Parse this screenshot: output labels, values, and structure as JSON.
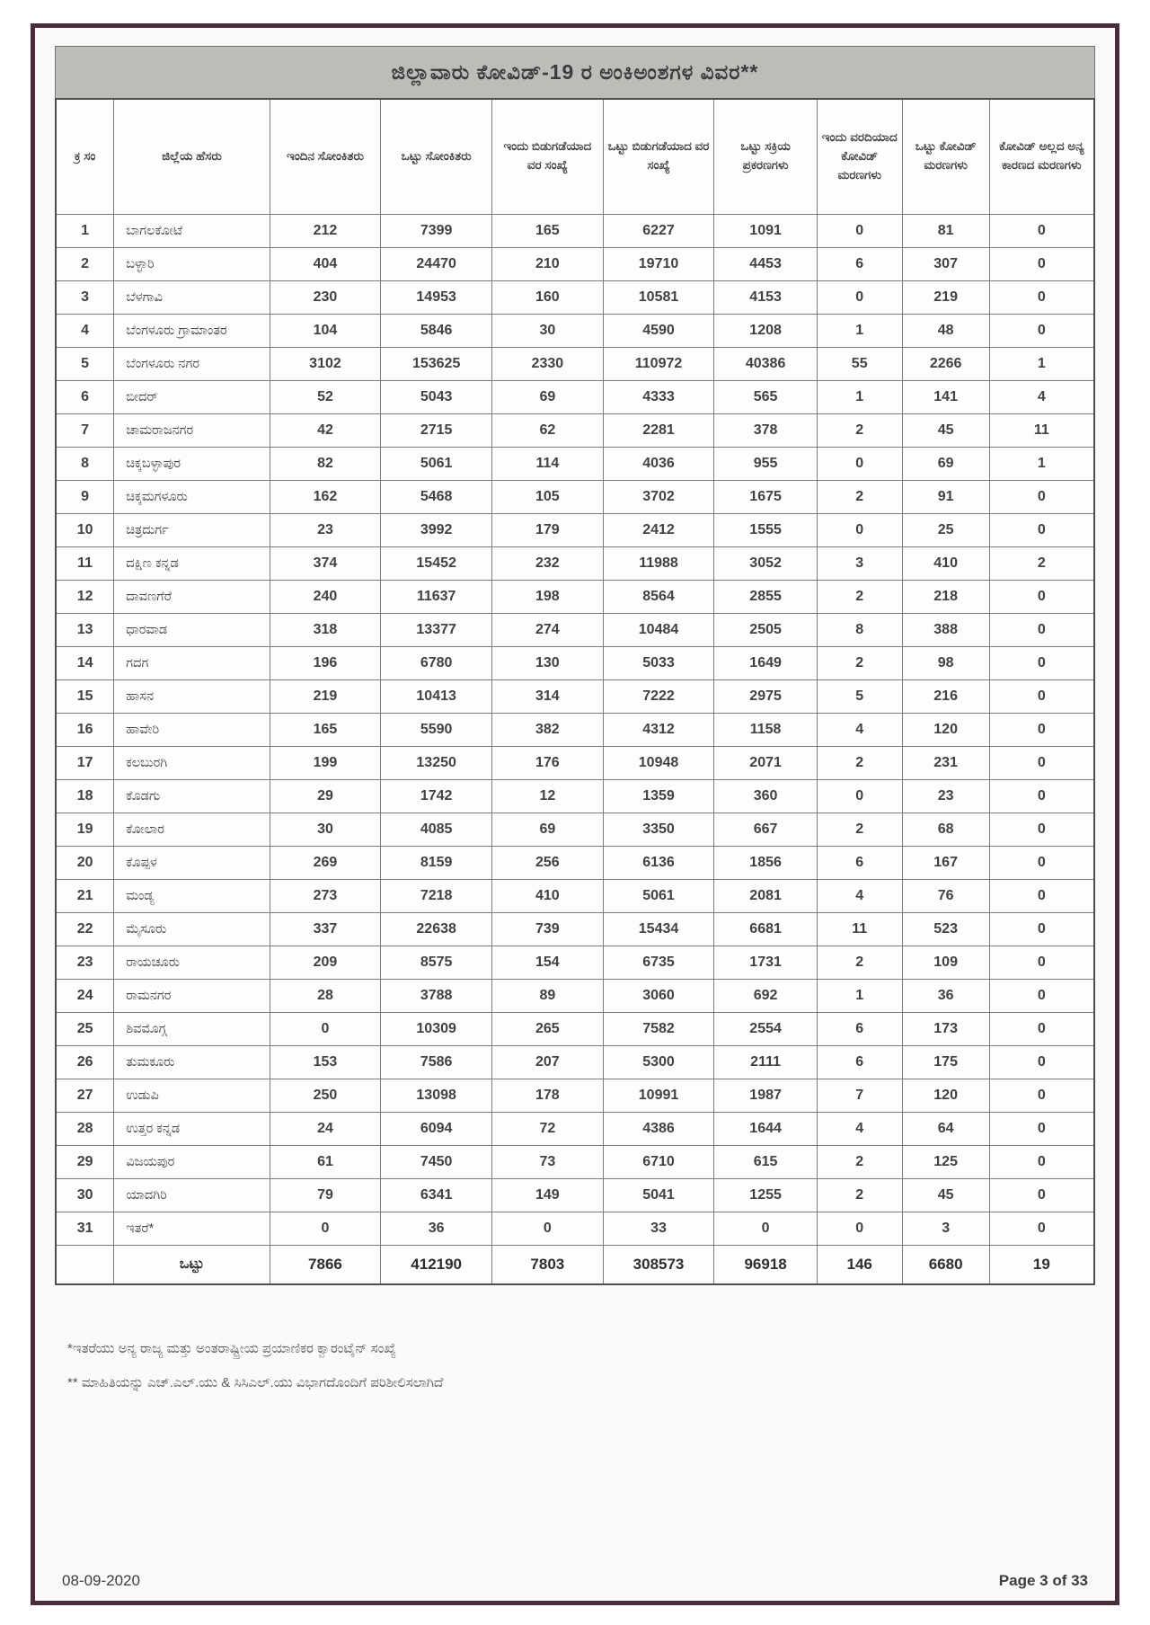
{
  "page": {
    "title": "ಜಿಲ್ಲಾವಾರು ಕೋವಿಡ್-19 ರ ಅಂಕಿಅಂಶಗಳ ವಿವರ**",
    "footer_date": "08-09-2020",
    "footer_page": "Page 3 of 33"
  },
  "table": {
    "headers": [
      "ಕ್ರ ಸಂ",
      "ಜಿಲ್ಲೆಯ ಹೆಸರು",
      "ಇಂದಿನ ಸೋಂಕಿತರು",
      "ಒಟ್ಟು ಸೋಂಕಿತರು",
      "ಇಂದು ಬಿಡುಗಡೆಯಾದ ವರ ಸಂಖ್ಯೆ",
      "ಒಟ್ಟು ಬಿಡುಗಡೆಯಾದ ವರ ಸಂಖ್ಯೆ",
      "ಒಟ್ಟು ಸಕ್ರಿಯ ಪ್ರಕರಣಗಳು",
      "ಇಂದು ವರದಿಯಾದ ಕೋವಿಡ್ ಮರಣಗಳು",
      "ಒಟ್ಟು ಕೋವಿಡ್ ಮರಣಗಳು",
      "ಕೋವಿಡ್ ಅಲ್ಲದ ಅನ್ಯ ಕಾರಣದ ಮರಣಗಳು"
    ],
    "rows": [
      [
        "1",
        "ಬಾಗಲಕೋಟೆ",
        "212",
        "7399",
        "165",
        "6227",
        "1091",
        "0",
        "81",
        "0"
      ],
      [
        "2",
        "ಬಳ್ಳಾರಿ",
        "404",
        "24470",
        "210",
        "19710",
        "4453",
        "6",
        "307",
        "0"
      ],
      [
        "3",
        "ಬೆಳಗಾವಿ",
        "230",
        "14953",
        "160",
        "10581",
        "4153",
        "0",
        "219",
        "0"
      ],
      [
        "4",
        "ಬೆಂಗಳೂರು ಗ್ರಾಮಾಂತರ",
        "104",
        "5846",
        "30",
        "4590",
        "1208",
        "1",
        "48",
        "0"
      ],
      [
        "5",
        "ಬೆಂಗಳೂರು ನಗರ",
        "3102",
        "153625",
        "2330",
        "110972",
        "40386",
        "55",
        "2266",
        "1"
      ],
      [
        "6",
        "ಬೀದರ್",
        "52",
        "5043",
        "69",
        "4333",
        "565",
        "1",
        "141",
        "4"
      ],
      [
        "7",
        "ಚಾಮರಾಜನಗರ",
        "42",
        "2715",
        "62",
        "2281",
        "378",
        "2",
        "45",
        "11"
      ],
      [
        "8",
        "ಚಿಕ್ಕಬಳ್ಳಾಪುರ",
        "82",
        "5061",
        "114",
        "4036",
        "955",
        "0",
        "69",
        "1"
      ],
      [
        "9",
        "ಚಿಕ್ಕಮಗಳೂರು",
        "162",
        "5468",
        "105",
        "3702",
        "1675",
        "2",
        "91",
        "0"
      ],
      [
        "10",
        "ಚಿತ್ರದುರ್ಗ",
        "23",
        "3992",
        "179",
        "2412",
        "1555",
        "0",
        "25",
        "0"
      ],
      [
        "11",
        "ದಕ್ಷಿಣ ಕನ್ನಡ",
        "374",
        "15452",
        "232",
        "11988",
        "3052",
        "3",
        "410",
        "2"
      ],
      [
        "12",
        "ದಾವಣಗೆರೆ",
        "240",
        "11637",
        "198",
        "8564",
        "2855",
        "2",
        "218",
        "0"
      ],
      [
        "13",
        "ಧಾರವಾಡ",
        "318",
        "13377",
        "274",
        "10484",
        "2505",
        "8",
        "388",
        "0"
      ],
      [
        "14",
        "ಗದಗ",
        "196",
        "6780",
        "130",
        "5033",
        "1649",
        "2",
        "98",
        "0"
      ],
      [
        "15",
        "ಹಾಸನ",
        "219",
        "10413",
        "314",
        "7222",
        "2975",
        "5",
        "216",
        "0"
      ],
      [
        "16",
        "ಹಾವೇರಿ",
        "165",
        "5590",
        "382",
        "4312",
        "1158",
        "4",
        "120",
        "0"
      ],
      [
        "17",
        "ಕಲಬುರಗಿ",
        "199",
        "13250",
        "176",
        "10948",
        "2071",
        "2",
        "231",
        "0"
      ],
      [
        "18",
        "ಕೊಡಗು",
        "29",
        "1742",
        "12",
        "1359",
        "360",
        "0",
        "23",
        "0"
      ],
      [
        "19",
        "ಕೋಲಾರ",
        "30",
        "4085",
        "69",
        "3350",
        "667",
        "2",
        "68",
        "0"
      ],
      [
        "20",
        "ಕೊಪ್ಪಳ",
        "269",
        "8159",
        "256",
        "6136",
        "1856",
        "6",
        "167",
        "0"
      ],
      [
        "21",
        "ಮಂಡ್ಯ",
        "273",
        "7218",
        "410",
        "5061",
        "2081",
        "4",
        "76",
        "0"
      ],
      [
        "22",
        "ಮೈಸೂರು",
        "337",
        "22638",
        "739",
        "15434",
        "6681",
        "11",
        "523",
        "0"
      ],
      [
        "23",
        "ರಾಯಚೂರು",
        "209",
        "8575",
        "154",
        "6735",
        "1731",
        "2",
        "109",
        "0"
      ],
      [
        "24",
        "ರಾಮನಗರ",
        "28",
        "3788",
        "89",
        "3060",
        "692",
        "1",
        "36",
        "0"
      ],
      [
        "25",
        "ಶಿವಮೊಗ್ಗ",
        "0",
        "10309",
        "265",
        "7582",
        "2554",
        "6",
        "173",
        "0"
      ],
      [
        "26",
        "ತುಮಕೂರು",
        "153",
        "7586",
        "207",
        "5300",
        "2111",
        "6",
        "175",
        "0"
      ],
      [
        "27",
        "ಉಡುಪಿ",
        "250",
        "13098",
        "178",
        "10991",
        "1987",
        "7",
        "120",
        "0"
      ],
      [
        "28",
        "ಉತ್ತರ ಕನ್ನಡ",
        "24",
        "6094",
        "72",
        "4386",
        "1644",
        "4",
        "64",
        "0"
      ],
      [
        "29",
        "ವಿಜಯಪುರ",
        "61",
        "7450",
        "73",
        "6710",
        "615",
        "2",
        "125",
        "0"
      ],
      [
        "30",
        "ಯಾದಗಿರಿ",
        "79",
        "6341",
        "149",
        "5041",
        "1255",
        "2",
        "45",
        "0"
      ],
      [
        "31",
        "ಇತರೆ*",
        "0",
        "36",
        "0",
        "33",
        "0",
        "0",
        "3",
        "0"
      ]
    ],
    "total": {
      "label": "ಒಟ್ಟು",
      "values": [
        "7866",
        "412190",
        "7803",
        "308573",
        "96918",
        "146",
        "6680",
        "19"
      ]
    },
    "column_widths_pct": [
      5.6,
      15.0,
      10.7,
      10.7,
      10.7,
      10.7,
      9.9,
      8.2,
      8.4,
      10.1
    ]
  },
  "footnotes": [
    "*ಇತರೆಯು ಅನ್ಯ ರಾಜ್ಯ ಮತ್ತು ಅಂತರಾಷ್ಟ್ರೀಯ ಪ್ರಯಾಣಿಕರ ಕ್ವಾರಂಟೈನ್ ಸಂಖ್ಯೆ",
    "** ಮಾಹಿತಿಯನ್ನು ಎಚ್.ಎಲ್.ಯು & ಸಿಸಿಎಲ್.ಯು ವಿಭಾಗದೊಂದಿಗೆ ಪರಿಶೀಲಿಸಲಾಗಿದೆ"
  ],
  "colors": {
    "page_border": "#4b2a3c",
    "title_bar_bg": "#bdbcb9",
    "grid_line": "#7c7c7c",
    "text": "#3a3a3a"
  }
}
